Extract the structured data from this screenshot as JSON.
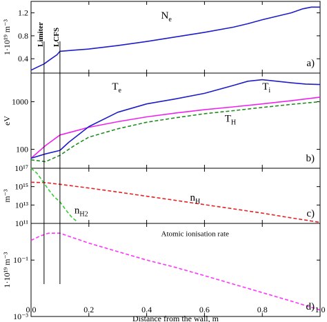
{
  "x_axis": {
    "label": "Distance from the wall, m",
    "range": [
      0.0,
      1.0
    ],
    "ticks": [
      0.0,
      0.2,
      0.4,
      0.6,
      0.8,
      1.0
    ],
    "tick_labels": [
      "0.0",
      "0.2",
      "0.4",
      "0.6",
      "0.8",
      "1.0"
    ]
  },
  "markers": [
    {
      "label": "Limiter",
      "x": 0.045
    },
    {
      "label": "LCFS",
      "x": 0.1
    }
  ],
  "colors": {
    "blue": "#1c1cc8",
    "magenta": "#ee22ee",
    "green": "#1e8c1e",
    "red": "#e82020",
    "lime": "#33cc33",
    "pink": "#ff33ff"
  },
  "chart_data": [
    {
      "type": "line",
      "panel": "a)",
      "ylabel": "1·10¹⁹ m⁻³",
      "scale": "linear",
      "ylim": [
        0.15,
        1.4
      ],
      "y_ticks": [
        0.4,
        0.8,
        1.2
      ],
      "y_tick_labels": [
        "0.4",
        "0.8",
        "1.2"
      ],
      "series": [
        {
          "name": "N_e",
          "color": "#1c1cc8",
          "style": "solid",
          "x": [
            0.0,
            0.02,
            0.045,
            0.07,
            0.09,
            0.1,
            0.15,
            0.2,
            0.3,
            0.4,
            0.5,
            0.6,
            0.7,
            0.75,
            0.8,
            0.85,
            0.9,
            0.94,
            0.97,
            1.0
          ],
          "y": [
            0.2,
            0.25,
            0.31,
            0.4,
            0.47,
            0.53,
            0.55,
            0.57,
            0.63,
            0.7,
            0.78,
            0.86,
            0.95,
            1.01,
            1.08,
            1.14,
            1.2,
            1.27,
            1.3,
            1.3
          ]
        }
      ],
      "annotations": [
        {
          "text": "N",
          "sub": "e",
          "x": 0.45,
          "y": 1.1
        }
      ]
    },
    {
      "type": "line",
      "panel": "b)",
      "ylabel": "eV",
      "scale": "log",
      "ylim": [
        40,
        4000
      ],
      "y_ticks": [
        100,
        1000
      ],
      "y_tick_labels": [
        "100",
        "1000"
      ],
      "series": [
        {
          "name": "T_e",
          "color": "#ee22ee",
          "style": "solid",
          "x": [
            0.0,
            0.05,
            0.1,
            0.15,
            0.2,
            0.3,
            0.4,
            0.5,
            0.6,
            0.7,
            0.8,
            0.9,
            1.0
          ],
          "y": [
            65,
            120,
            200,
            240,
            290,
            380,
            480,
            580,
            680,
            780,
            900,
            1050,
            1250
          ]
        },
        {
          "name": "T_i",
          "color": "#1c1cc8",
          "style": "solid",
          "x": [
            0.0,
            0.05,
            0.1,
            0.13,
            0.2,
            0.3,
            0.4,
            0.5,
            0.6,
            0.7,
            0.75,
            0.8,
            0.85,
            0.9,
            0.95,
            1.0
          ],
          "y": [
            65,
            80,
            95,
            140,
            300,
            600,
            900,
            1150,
            1500,
            2200,
            2700,
            2900,
            2700,
            2500,
            2350,
            2300
          ]
        },
        {
          "name": "T_H",
          "color": "#1e8c1e",
          "style": "dashed",
          "x": [
            0.0,
            0.05,
            0.1,
            0.15,
            0.2,
            0.3,
            0.4,
            0.5,
            0.6,
            0.7,
            0.8,
            0.9,
            1.0
          ],
          "y": [
            60,
            55,
            75,
            120,
            180,
            270,
            370,
            460,
            560,
            650,
            760,
            880,
            1000
          ]
        }
      ],
      "annotations": [
        {
          "text": "T",
          "sub": "e",
          "x": 0.28,
          "y": 1800
        },
        {
          "text": "T",
          "sub": "i",
          "x": 0.8,
          "y": 1800
        },
        {
          "text": "T",
          "sub": "H",
          "x": 0.67,
          "y": 380
        }
      ]
    },
    {
      "type": "line",
      "panel": "c)",
      "ylabel": "m⁻³",
      "scale": "log",
      "ylim": [
        100000000000.0,
        1e+17
      ],
      "y_ticks": [
        100000000000.0,
        10000000000000.0,
        1000000000000000.0,
        1e+17
      ],
      "y_tick_labels": [
        "10¹¹",
        "10¹³",
        "10¹⁵",
        "10¹⁷"
      ],
      "series": [
        {
          "name": "n_H",
          "color": "#e82020",
          "style": "dashed",
          "x": [
            0.0,
            0.05,
            0.1,
            0.2,
            0.3,
            0.4,
            0.5,
            0.6,
            0.7,
            0.8,
            0.9,
            1.0
          ],
          "y": [
            3000000000000000.0,
            2700000000000000.0,
            1800000000000000.0,
            700000000000000.0,
            260000000000000.0,
            90000000000000.0,
            32000000000000.0,
            11000000000000.0,
            3800000000000.0,
            1300000000000.0,
            400000000000.0,
            130000000000.0
          ]
        },
        {
          "name": "n_H2",
          "color": "#33cc33",
          "style": "dashed",
          "x": [
            0.0,
            0.02,
            0.04,
            0.06,
            0.08,
            0.1,
            0.12,
            0.14,
            0.16
          ],
          "y": [
            1e+17,
            3e+16,
            4000000000000000.0,
            500000000000000.0,
            80000000000000.0,
            22000000000000.0,
            3000000000000.0,
            500000000000.0,
            150000000000.0
          ]
        }
      ],
      "annotations": [
        {
          "text": "n",
          "sub": "H",
          "x": 0.55,
          "y": 30000000000000.0
        },
        {
          "text": "n",
          "sub": "H2",
          "x": 0.15,
          "y": 1200000000000.0
        }
      ]
    },
    {
      "type": "line",
      "panel": "d)",
      "ylabel": "1·10¹⁹ m⁻³",
      "scale": "log",
      "ylim": [
        0.001,
        2
      ],
      "y_ticks": [
        0.001,
        0.1
      ],
      "y_tick_labels": [
        "10⁻³",
        "10⁻¹"
      ],
      "series": [
        {
          "name": "Atomic ionisation rate",
          "color": "#ff33ff",
          "style": "dashed",
          "x": [
            0.0,
            0.03,
            0.06,
            0.1,
            0.2,
            0.3,
            0.4,
            0.5,
            0.6,
            0.7,
            0.8,
            0.9,
            1.0
          ],
          "y": [
            0.5,
            0.7,
            0.9,
            0.9,
            0.4,
            0.2,
            0.1,
            0.055,
            0.028,
            0.014,
            0.007,
            0.0035,
            0.0017
          ]
        }
      ],
      "annotations": [
        {
          "text": "Atomic ionisation rate",
          "x": 0.45,
          "y": 0.7
        }
      ]
    }
  ]
}
